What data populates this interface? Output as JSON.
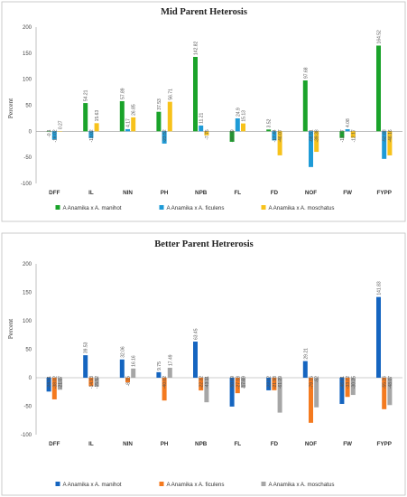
{
  "chart_data": [
    {
      "type": "bar",
      "title": "Mid Parent Heterosis",
      "ylabel": "Percent",
      "ylim": [
        -100,
        200
      ],
      "yticks": [
        -100,
        -50,
        0,
        50,
        100,
        150,
        200
      ],
      "grid": false,
      "legend_position": "bottom",
      "categories": [
        "DFF",
        "IL",
        "NIN",
        "PH",
        "NPB",
        "FL",
        "FD",
        "NOF",
        "FW",
        "FYPP"
      ],
      "series": [
        {
          "name": "A Anamika x A. manihot",
          "color": "#1aa32a",
          "values": [
            -0.1,
            54.21,
            57.89,
            37.53,
            142.82,
            -20.09,
            3.52,
            97.68,
            -12.77,
            164.52
          ],
          "labels": [
            "-0.1",
            "54.21",
            "57.89",
            "37.53",
            "142.82",
            "-20.09",
            "3.52",
            "97.68",
            "-12.77",
            "164.52"
          ]
        },
        {
          "name": "A Anamika x A. ficulens",
          "color": "#1e9bd7",
          "values": [
            -16.02,
            -13.02,
            4.17,
            -23.52,
            11.21,
            24.9,
            -17.44,
            -68.51,
            4.08,
            -52.88
          ],
          "labels": [
            "-16.02",
            "-13.02",
            "4.17",
            "-23.52",
            "11.21",
            "24.9",
            "-17.44",
            "-68.51",
            "4.08",
            "-52.88"
          ]
        },
        {
          "name": "A Anamika x A. moschatus",
          "color": "#f7c21b",
          "values": [
            0.27,
            15.63,
            26.85,
            56.71,
            -7.75,
            15.13,
            -46.07,
            -39.38,
            -12.17,
            -46.16
          ],
          "labels": [
            "0.27",
            "15.63",
            "26.85",
            "56.71",
            "-7.75",
            "15.13",
            "-46.07",
            "-39.38",
            "-12.17",
            "-46.16"
          ]
        }
      ]
    },
    {
      "type": "bar",
      "title": "Better Parent Hetrerosis",
      "ylabel": "Percent",
      "ylim": [
        -100,
        200
      ],
      "yticks": [
        -100,
        -50,
        0,
        50,
        100,
        150,
        200
      ],
      "grid": false,
      "legend_position": "bottom",
      "categories": [
        "DFF",
        "IL",
        "NIN",
        "PH",
        "NPB",
        "FL",
        "FD",
        "NOF",
        "FW",
        "FYPP"
      ],
      "series": [
        {
          "name": "A Anamika x A. manihot",
          "color": "#1565c0",
          "values": [
            -24.31,
            39.53,
            32.06,
            9.75,
            63.45,
            -50.69,
            -22.12,
            29.21,
            -46.01,
            141.83
          ],
          "labels": [
            "-24.31",
            "39.53",
            "32.06",
            "9.75",
            "63.45",
            "-50.69",
            "-22.12",
            "29.21",
            "-46.01",
            "141.83"
          ]
        },
        {
          "name": "A Anamika x A. ficulens",
          "color": "#f47a1f",
          "values": [
            -38.02,
            -14.93,
            -8.15,
            -40.02,
            -22.32,
            -27.18,
            -21.98,
            -79.15,
            -33.72,
            -55.26
          ],
          "labels": [
            "-38.02",
            "-14.93",
            "-8.15",
            "-40.02",
            "-22.32",
            "-27.18",
            "-21.98",
            "-79.15",
            "-33.72",
            "-55.26"
          ]
        },
        {
          "name": "A Anamika x A. moschatus",
          "color": "#a6a6a6",
          "values": [
            -21.07,
            -15.52,
            16.16,
            17.49,
            -43.11,
            -17.69,
            -61.29,
            -52,
            -30.25,
            -48.07
          ],
          "labels": [
            "-21.07",
            "-15.52",
            "16.16",
            "17.49",
            "-43.11",
            "-17.69",
            "-61.29",
            "-52",
            "-30.25",
            "-48.07"
          ]
        }
      ]
    }
  ]
}
